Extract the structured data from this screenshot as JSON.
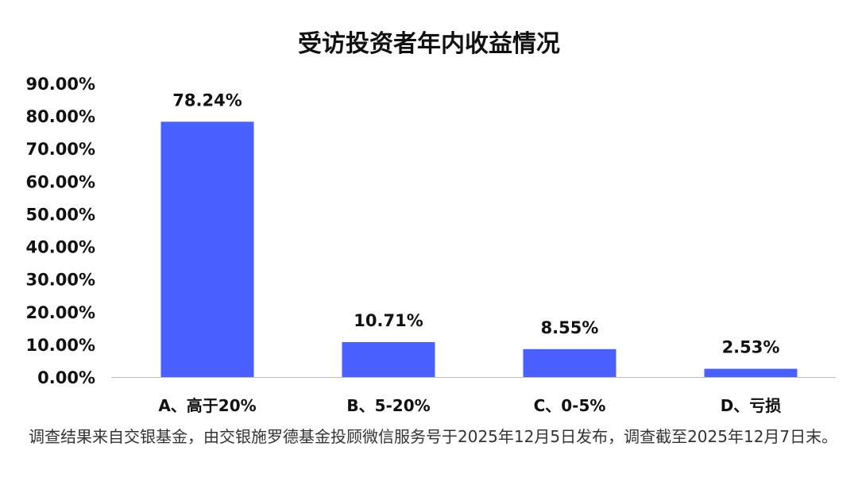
{
  "chart_data": {
    "type": "bar",
    "title": "受访投资者年内收益情况",
    "categories": [
      "A、高于20%",
      "B、5-20%",
      "C、0-5%",
      "D、亏损"
    ],
    "values": [
      78.24,
      10.71,
      8.55,
      2.53
    ],
    "data_labels": [
      "78.24%",
      "10.71%",
      "8.55%",
      "2.53%"
    ],
    "ylim": [
      0,
      90
    ],
    "yticks": [
      "0.00%",
      "10.00%",
      "20.00%",
      "30.00%",
      "40.00%",
      "50.00%",
      "60.00%",
      "70.00%",
      "80.00%",
      "90.00%"
    ],
    "xlabel": "",
    "ylabel": "",
    "grid": false,
    "bar_color": "#4a5fff"
  },
  "footnote": "调查结果来自交银基金，由交银施罗德基金投顾微信服务号于2025年12月5日发布，调查截至2025年12月7日末。"
}
